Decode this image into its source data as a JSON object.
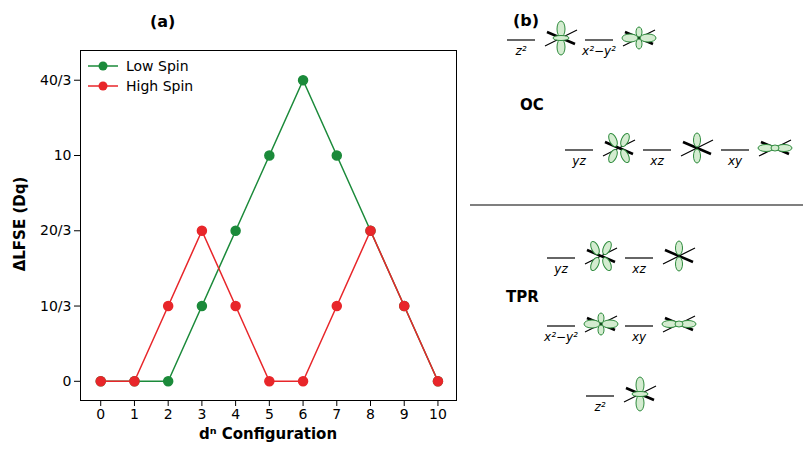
{
  "chart_data": {
    "type": "line",
    "title": "(a)",
    "x_label": "dⁿ Configuration",
    "y_label": "ΔLFSE (Dq)",
    "x": [
      0,
      1,
      2,
      3,
      4,
      5,
      6,
      7,
      8,
      9,
      10
    ],
    "series": [
      {
        "name": "Low Spin",
        "color": "#1b8a3a",
        "marker": "circle",
        "values": [
          0,
          0,
          0,
          3.3333,
          6.6667,
          10,
          13.3333,
          10,
          6.6667,
          3.3333,
          0
        ]
      },
      {
        "name": "High Spin",
        "color": "#e8262a",
        "marker": "circle",
        "values": [
          0,
          0,
          3.3333,
          6.6667,
          3.3333,
          0,
          0,
          3.3333,
          6.6667,
          3.3333,
          0
        ]
      }
    ],
    "xlim": [
      -0.6,
      10.55
    ],
    "xticks": [
      0,
      1,
      2,
      3,
      4,
      5,
      6,
      7,
      8,
      9,
      10
    ],
    "ylim": [
      -0.85,
      14.65
    ],
    "yticks": [
      0,
      {
        "value": 3.3333,
        "label": "10/3"
      },
      {
        "value": 6.6667,
        "label": "20/3"
      },
      10,
      {
        "value": 13.3333,
        "label": "40/3"
      }
    ],
    "grid": false,
    "legend": "upper left"
  },
  "panel_b": {
    "label": "(b)",
    "groups": [
      {
        "name": "OC",
        "levels": [
          [
            "z²",
            "x²−y²"
          ],
          [
            "yz",
            "xz",
            "xy"
          ]
        ]
      },
      {
        "name": "TPR",
        "levels": [
          [
            "yz",
            "xz"
          ],
          [
            "x²−y²",
            "xy"
          ],
          [
            "z²"
          ]
        ]
      }
    ]
  }
}
